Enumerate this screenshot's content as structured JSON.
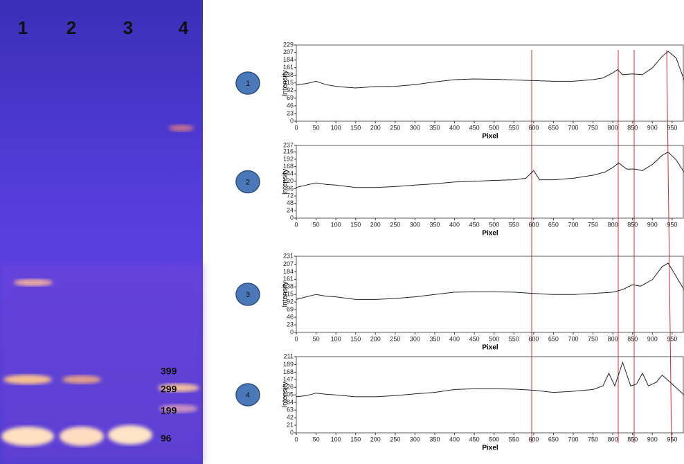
{
  "gel": {
    "lanes": [
      "1",
      "2",
      "3",
      "4"
    ],
    "ladder": [
      "399",
      "299",
      "199",
      "96"
    ]
  },
  "chart_data": [
    {
      "type": "line",
      "label": "1",
      "xlabel": "Pixel",
      "ylabel": "Intensity",
      "color": "#222222",
      "x": [
        0,
        25,
        50,
        75,
        100,
        125,
        150,
        175,
        200,
        250,
        300,
        350,
        400,
        450,
        500,
        550,
        600,
        650,
        700,
        750,
        775,
        800,
        812,
        825,
        850,
        875,
        900,
        925,
        940,
        960,
        980
      ],
      "values": [
        110,
        113,
        120,
        110,
        105,
        102,
        100,
        102,
        104,
        105,
        110,
        118,
        125,
        127,
        126,
        124,
        122,
        120,
        120,
        125,
        130,
        145,
        155,
        140,
        142,
        140,
        160,
        195,
        210,
        190,
        125
      ],
      "xlim": [
        0,
        980
      ],
      "xticks": [
        0,
        50,
        100,
        150,
        200,
        250,
        300,
        350,
        400,
        450,
        500,
        550,
        600,
        650,
        700,
        750,
        800,
        850,
        900,
        950
      ],
      "ylim": [
        0,
        229
      ],
      "yticks": [
        0,
        23,
        46,
        69,
        92,
        115,
        138,
        161,
        184,
        207,
        229
      ]
    },
    {
      "type": "line",
      "label": "2",
      "xlabel": "Pixel",
      "ylabel": "Intensity",
      "color": "#222222",
      "x": [
        0,
        25,
        50,
        75,
        100,
        150,
        200,
        250,
        300,
        350,
        400,
        450,
        500,
        550,
        580,
        600,
        615,
        650,
        700,
        750,
        780,
        800,
        815,
        835,
        855,
        875,
        900,
        925,
        940,
        960,
        980
      ],
      "values": [
        100,
        108,
        115,
        110,
        108,
        100,
        100,
        103,
        108,
        112,
        118,
        120,
        123,
        125,
        130,
        155,
        125,
        125,
        130,
        140,
        150,
        165,
        180,
        160,
        160,
        155,
        175,
        205,
        215,
        190,
        150
      ],
      "xlim": [
        0,
        980
      ],
      "xticks": [
        0,
        50,
        100,
        150,
        200,
        250,
        300,
        350,
        400,
        450,
        500,
        550,
        600,
        650,
        700,
        750,
        800,
        850,
        900,
        950
      ],
      "ylim": [
        0,
        237
      ],
      "yticks": [
        0,
        24,
        48,
        72,
        96,
        120,
        144,
        168,
        192,
        216,
        237
      ]
    },
    {
      "type": "line",
      "label": "3",
      "xlabel": "Pixel",
      "ylabel": "Intensity",
      "color": "#222222",
      "x": [
        0,
        25,
        50,
        75,
        100,
        150,
        200,
        250,
        300,
        350,
        400,
        450,
        500,
        550,
        600,
        650,
        700,
        750,
        800,
        825,
        850,
        870,
        900,
        925,
        940,
        960,
        980
      ],
      "values": [
        100,
        108,
        115,
        110,
        108,
        100,
        100,
        103,
        108,
        115,
        122,
        123,
        123,
        122,
        118,
        115,
        115,
        118,
        122,
        130,
        145,
        140,
        160,
        200,
        210,
        170,
        130
      ],
      "xlim": [
        0,
        980
      ],
      "xticks": [
        0,
        50,
        100,
        150,
        200,
        250,
        300,
        350,
        400,
        450,
        500,
        550,
        600,
        650,
        700,
        750,
        800,
        850,
        900,
        950
      ],
      "ylim": [
        0,
        231
      ],
      "yticks": [
        0,
        23,
        46,
        69,
        92,
        115,
        138,
        161,
        184,
        207,
        231
      ]
    },
    {
      "type": "line",
      "label": "4",
      "xlabel": "Pixel",
      "ylabel": "Intensity",
      "color": "#222222",
      "x": [
        0,
        25,
        50,
        75,
        100,
        150,
        200,
        250,
        300,
        350,
        400,
        450,
        500,
        550,
        600,
        650,
        700,
        750,
        775,
        790,
        805,
        825,
        845,
        860,
        875,
        890,
        910,
        925,
        945,
        965,
        980
      ],
      "values": [
        100,
        103,
        110,
        107,
        105,
        100,
        100,
        103,
        108,
        112,
        120,
        122,
        122,
        121,
        118,
        112,
        115,
        120,
        130,
        165,
        130,
        195,
        130,
        135,
        165,
        130,
        140,
        160,
        140,
        120,
        105
      ],
      "xlim": [
        0,
        980
      ],
      "xticks": [
        0,
        50,
        100,
        150,
        200,
        250,
        300,
        350,
        400,
        450,
        500,
        550,
        600,
        650,
        700,
        750,
        800,
        850,
        900,
        950
      ],
      "ylim": [
        0,
        211
      ],
      "yticks": [
        0,
        21,
        42,
        63,
        84,
        105,
        126,
        147,
        168,
        189,
        211
      ]
    }
  ]
}
